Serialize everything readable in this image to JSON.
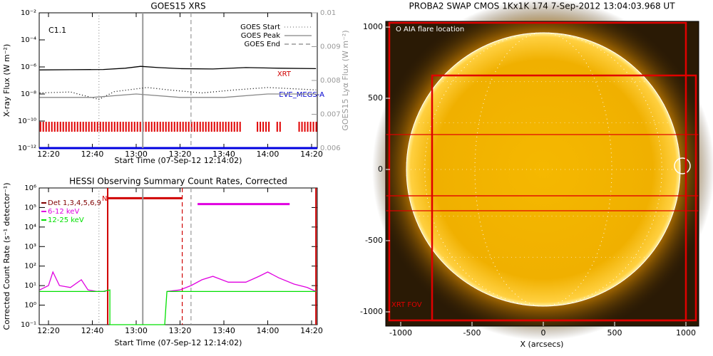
{
  "chart_data": [
    {
      "type": "line",
      "title": "GOES15 XRS",
      "xlabel": "Start Time (07-Sep-12 12:14:02)",
      "ylabel": "X-ray Flux (W m⁻²)",
      "y2label": "GOES15 Lyα Flux (W m⁻²)",
      "annotations": {
        "flare_class": "C1.1",
        "xrt": "XRT",
        "eve": "EVE_MEGS-A"
      },
      "log_y": true,
      "xlim": [
        "12:15:46",
        "14:22:36"
      ],
      "xticks": [
        "12:20",
        "12:40",
        "13:00",
        "13:20",
        "13:40",
        "14:00",
        "14:20"
      ],
      "ylim": [
        1e-12,
        0.01
      ],
      "yticks": [
        {
          "value": 1e-12,
          "label": "10⁻¹²"
        },
        {
          "value": 1e-10,
          "label": "10⁻¹⁰"
        },
        {
          "value": 1e-08,
          "label": "10⁻⁸"
        },
        {
          "value": 1e-06,
          "label": "10⁻⁶"
        },
        {
          "value": 0.0001,
          "label": "10⁻⁴"
        },
        {
          "value": 0.01,
          "label": "10⁻²"
        }
      ],
      "y2lim": [
        0.006,
        0.01
      ],
      "y2ticks": [
        0.006,
        0.007,
        0.008,
        0.009,
        0.01
      ],
      "series": [
        {
          "color": "#000000",
          "style": "solid",
          "x": [
            "12:16",
            "12:30",
            "12:45",
            "12:55",
            "13:02",
            "13:10",
            "13:20",
            "13:35",
            "13:50",
            "14:05",
            "14:22"
          ],
          "values": [
            6e-07,
            6.2e-07,
            6.5e-07,
            8e-07,
            1.1e-06,
            9e-07,
            7.5e-07,
            7e-07,
            9e-07,
            8e-07,
            7.5e-07
          ]
        },
        {
          "color": "#000000",
          "style": "dotted",
          "x": [
            "12:16",
            "12:30",
            "12:43",
            "12:50",
            "13:05",
            "13:15",
            "13:30",
            "13:45",
            "14:00",
            "14:10",
            "14:22"
          ],
          "values": [
            1.2e-08,
            1.4e-08,
            4e-09,
            1.5e-08,
            3e-08,
            2e-08,
            1.2e-08,
            2e-08,
            3e-08,
            2.5e-08,
            2e-08
          ]
        },
        {
          "color": "#888888",
          "style": "solid",
          "axis": "y2",
          "x": [
            "12:16",
            "12:40",
            "13:00",
            "13:20",
            "13:40",
            "14:00",
            "14:22"
          ],
          "values": [
            0.0075,
            0.0075,
            0.0076,
            0.0075,
            0.0075,
            0.0076,
            0.0076
          ]
        }
      ],
      "coverage": [
        {
          "color": "#e00000",
          "value": 1e-10,
          "intervals": [
            [
              "12:16",
              "13:48"
            ],
            [
              "13:55",
              "14:01"
            ],
            [
              "14:04",
              "14:06"
            ],
            [
              "14:14",
              "14:22:36"
            ]
          ]
        },
        {
          "color": "#0000e0",
          "value": 1e-12,
          "intervals": [
            [
              "12:15:46",
              "14:22:36"
            ]
          ]
        }
      ],
      "events": [
        {
          "name": "GOES Start",
          "x": "12:43",
          "style": "dotted",
          "color": "#999999"
        },
        {
          "name": "GOES Peak",
          "x": "13:03",
          "style": "solid",
          "color": "#999999"
        },
        {
          "name": "GOES End",
          "x": "13:25",
          "style": "dashed",
          "color": "#999999"
        }
      ]
    },
    {
      "type": "line",
      "title": "HESSI Observing Summary Count Rates, Corrected",
      "xlabel": "Start Time (07-Sep-12 12:14:02)",
      "ylabel": "Corrected Count Rate (s⁻¹ detector⁻¹)",
      "annotations": {
        "flag": "N"
      },
      "log_y": true,
      "xlim": [
        "12:15:46",
        "14:22:36"
      ],
      "xticks": [
        "12:20",
        "12:40",
        "13:00",
        "13:20",
        "13:40",
        "14:00",
        "14:20"
      ],
      "ylim": [
        0.1,
        1000000
      ],
      "yticks": [
        {
          "value": 0.1,
          "label": "10⁻¹"
        },
        {
          "value": 1,
          "label": "10⁰"
        },
        {
          "value": 10,
          "label": "10¹"
        },
        {
          "value": 100,
          "label": "10²"
        },
        {
          "value": 1000,
          "label": "10³"
        },
        {
          "value": 10000,
          "label": "10⁴"
        },
        {
          "value": 100000,
          "label": "10⁵"
        },
        {
          "value": 1000000,
          "label": "10⁶"
        }
      ],
      "series": [
        {
          "name": "Det 1,3,4,5,6,9",
          "color": "#800000",
          "style": "solid",
          "x": [],
          "values": []
        },
        {
          "name": "6-12 keV",
          "color": "#e000e0",
          "style": "solid",
          "x": [
            "12:16",
            "12:20",
            "12:22",
            "12:25",
            "12:30",
            "12:35",
            "12:38",
            "12:42",
            "12:46",
            "12:47",
            "13:14",
            "13:20",
            "13:25",
            "13:30",
            "13:35",
            "13:42",
            "13:50",
            "13:56",
            "14:00",
            "14:05",
            "14:12",
            "14:18",
            "14:22"
          ],
          "values": [
            6,
            10,
            50,
            10,
            8,
            20,
            6,
            5,
            5,
            null,
            5,
            6,
            10,
            20,
            30,
            15,
            15,
            30,
            50,
            25,
            12,
            8,
            5
          ]
        },
        {
          "name": "12-25 keV",
          "color": "#00e000",
          "style": "solid",
          "x": [
            "12:16",
            "12:30",
            "12:45",
            "12:48",
            "12:48",
            "13:13",
            "13:14",
            "13:40",
            "14:00",
            "14:22"
          ],
          "values": [
            5,
            5,
            5,
            6,
            0.1,
            0.1,
            5,
            5,
            5,
            5
          ]
        }
      ],
      "bars": [
        {
          "color": "#d00000",
          "value": 300000,
          "from": "12:47",
          "to": "13:21"
        },
        {
          "color": "#e000e0",
          "value": 150000,
          "from": "13:28",
          "to": "14:10"
        }
      ],
      "events": [
        {
          "x": "12:43",
          "style": "dotted",
          "color": "#999999"
        },
        {
          "x": "13:03",
          "style": "solid",
          "color": "#999999"
        },
        {
          "x": "13:25",
          "style": "dashed",
          "color": "#999999"
        },
        {
          "x": "12:47",
          "style": "solid",
          "color": "#d00000"
        },
        {
          "x": "13:21",
          "style": "dashed",
          "color": "#d00000"
        },
        {
          "x": "14:22",
          "style": "solid",
          "color": "#d00000"
        }
      ]
    },
    {
      "type": "image",
      "title": "PROBA2 SWAP CMOS 1Kx1K 174  7-Sep-2012 13:04:03.968 UT",
      "xlabel": "X (arcsecs)",
      "annotations": {
        "flare": "O AIA flare location",
        "fov": "XRT FOV"
      },
      "xlim": [
        -1105,
        1090
      ],
      "ylim": [
        -1100,
        1040
      ],
      "xticks": [
        -1000,
        -500,
        0,
        500,
        1000
      ],
      "yticks": [
        -1000,
        -500,
        0,
        500,
        1000
      ],
      "sun_radius": 960,
      "flare": {
        "x": 975,
        "y": 25,
        "r": 55
      },
      "fov_boxes": [
        [
          -1080,
          -1060,
          1000,
          1030
        ],
        [
          -780,
          -1060,
          1070,
          660
        ],
        [
          -1105,
          -185,
          1090,
          245
        ],
        [
          -1105,
          -290,
          1090,
          -185
        ]
      ]
    }
  ]
}
